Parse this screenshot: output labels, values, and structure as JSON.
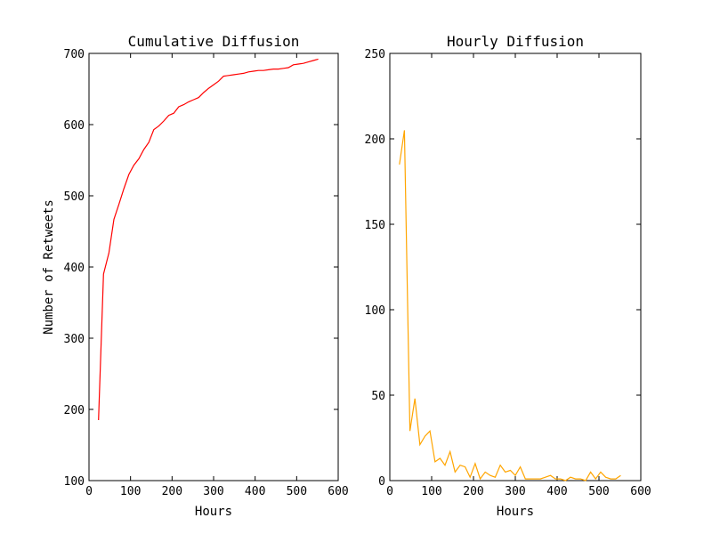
{
  "chart_data": [
    {
      "type": "line",
      "title": "Cumulative Diffusion",
      "xlabel": "Hours",
      "ylabel": "Number of Retweets",
      "xlim": [
        0,
        600
      ],
      "ylim": [
        100,
        700
      ],
      "xticks": [
        "0",
        "100",
        "200",
        "300",
        "400",
        "500",
        "600"
      ],
      "yticks": [
        "100",
        "200",
        "300",
        "400",
        "500",
        "600",
        "700"
      ],
      "grid": false,
      "color": "#ff0000",
      "x": [
        23,
        35,
        48,
        60,
        72,
        84,
        96,
        108,
        120,
        132,
        144,
        156,
        168,
        180,
        192,
        204,
        216,
        228,
        240,
        252,
        264,
        276,
        288,
        300,
        312,
        324,
        336,
        348,
        360,
        372,
        384,
        396,
        408,
        420,
        432,
        444,
        456,
        468,
        480,
        492,
        504,
        516,
        528,
        540,
        552
      ],
      "y": [
        185,
        390,
        420,
        467,
        488,
        510,
        530,
        543,
        552,
        565,
        575,
        593,
        598,
        605,
        613,
        616,
        625,
        628,
        632,
        635,
        638,
        645,
        651,
        656,
        661,
        668,
        669,
        670,
        671,
        672,
        674,
        675,
        676,
        676,
        677,
        678,
        678,
        679,
        680,
        684,
        685,
        686,
        688,
        690,
        692
      ]
    },
    {
      "type": "line",
      "title": "Hourly Diffusion",
      "xlabel": "Hours",
      "ylabel": "",
      "xlim": [
        0,
        600
      ],
      "ylim": [
        0,
        250
      ],
      "xticks": [
        "0",
        "100",
        "200",
        "300",
        "400",
        "500",
        "600"
      ],
      "yticks": [
        "0",
        "50",
        "100",
        "150",
        "200",
        "250"
      ],
      "grid": false,
      "color": "#ffa500",
      "x": [
        23,
        35,
        48,
        60,
        72,
        84,
        96,
        108,
        120,
        132,
        144,
        156,
        168,
        180,
        192,
        204,
        216,
        228,
        240,
        252,
        264,
        276,
        288,
        300,
        312,
        324,
        336,
        348,
        360,
        372,
        384,
        396,
        408,
        420,
        432,
        444,
        456,
        468,
        480,
        492,
        504,
        516,
        528,
        540,
        552
      ],
      "y": [
        185,
        205,
        29,
        48,
        21,
        26,
        29,
        11,
        13,
        9,
        17,
        5,
        9,
        8,
        2,
        10,
        1,
        5,
        3,
        2,
        9,
        5,
        6,
        3,
        8,
        1,
        1,
        1,
        1,
        2,
        3,
        1,
        1,
        0,
        2,
        1,
        1,
        0,
        5,
        1,
        5,
        2,
        1,
        1,
        3
      ]
    }
  ]
}
